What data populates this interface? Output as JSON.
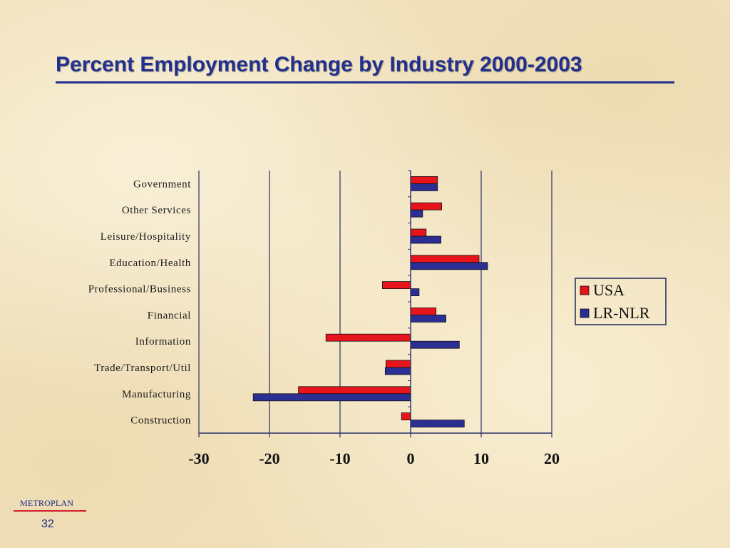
{
  "slide": {
    "title": "Percent Employment Change by Industry 2000-2003",
    "footer_brand": "METROPLAN",
    "page_number": "32"
  },
  "chart_data": {
    "type": "bar",
    "orientation": "horizontal",
    "title": "Percent Employment Change by Industry 2000-2003",
    "categories": [
      "Government",
      "Other Services",
      "Leisure/Hospitality",
      "Education/Health",
      "Professional/Business",
      "Financial",
      "Information",
      "Trade/Transport/Util",
      "Manufacturing",
      "Construction"
    ],
    "series": [
      {
        "name": "USA",
        "color": "#e8141c",
        "values": [
          3.8,
          4.4,
          2.2,
          9.7,
          -4.0,
          3.6,
          -12.0,
          -3.5,
          -15.9,
          -1.3
        ]
      },
      {
        "name": "LR-NLR",
        "color": "#2b2f94",
        "values": [
          3.8,
          1.7,
          4.3,
          10.9,
          1.2,
          5.0,
          6.9,
          -3.6,
          -22.3,
          7.6
        ]
      }
    ],
    "xlim": [
      -30,
      20
    ],
    "xticks": [
      -30,
      -20,
      -10,
      0,
      10,
      20
    ],
    "xlabel": "",
    "ylabel": "",
    "grid": "vertical",
    "legend": "right"
  }
}
